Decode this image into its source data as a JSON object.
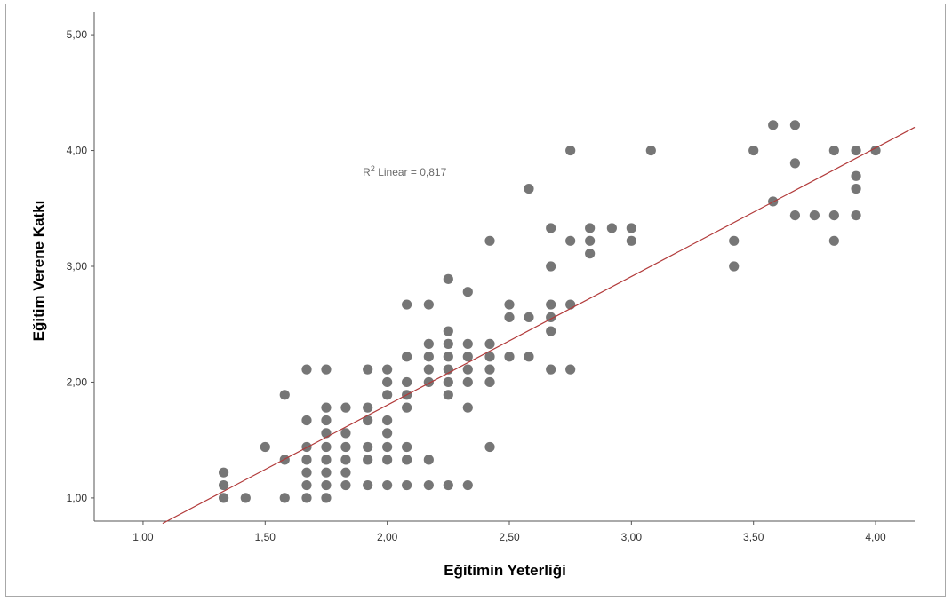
{
  "chart_data": {
    "type": "scatter",
    "title": "",
    "xlabel": "Eğitimin Yeterliği",
    "ylabel": "Eğitim Verene Katkı",
    "xlim": [
      0.8,
      4.16
    ],
    "ylim": [
      0.8,
      5.2
    ],
    "x_ticks": [
      "1,00",
      "1,50",
      "2,00",
      "2,50",
      "3,00",
      "3,50",
      "4,00"
    ],
    "y_ticks": [
      "1,00",
      "2,00",
      "3,00",
      "4,00",
      "5,00"
    ],
    "x_tick_values": [
      1,
      1.5,
      2,
      2.5,
      3,
      3.5,
      4
    ],
    "y_tick_values": [
      1,
      2,
      3,
      4,
      5
    ],
    "grid": false,
    "point_color": "#767676",
    "fit_line_color": "#b23a3a",
    "annotation": {
      "label_prefix": "R",
      "label_sup": "2",
      "label_rest": " Linear = 0,817",
      "x": 1.9,
      "y": 3.78
    },
    "fit_line": {
      "x": [
        1.08,
        4.16
      ],
      "y": [
        0.78,
        4.2
      ]
    },
    "points": [
      [
        1.33,
        1.0
      ],
      [
        1.33,
        1.11
      ],
      [
        1.33,
        1.22
      ],
      [
        1.42,
        1.0
      ],
      [
        1.5,
        1.44
      ],
      [
        1.58,
        1.0
      ],
      [
        1.58,
        1.33
      ],
      [
        1.58,
        1.89
      ],
      [
        1.67,
        1.0
      ],
      [
        1.67,
        1.11
      ],
      [
        1.67,
        1.22
      ],
      [
        1.67,
        1.33
      ],
      [
        1.67,
        1.44
      ],
      [
        1.67,
        1.67
      ],
      [
        1.67,
        2.11
      ],
      [
        1.75,
        1.0
      ],
      [
        1.75,
        1.11
      ],
      [
        1.75,
        1.22
      ],
      [
        1.75,
        1.33
      ],
      [
        1.75,
        1.44
      ],
      [
        1.75,
        1.56
      ],
      [
        1.75,
        1.67
      ],
      [
        1.75,
        1.78
      ],
      [
        1.75,
        2.11
      ],
      [
        1.83,
        1.11
      ],
      [
        1.83,
        1.22
      ],
      [
        1.83,
        1.33
      ],
      [
        1.83,
        1.44
      ],
      [
        1.83,
        1.56
      ],
      [
        1.83,
        1.78
      ],
      [
        1.92,
        1.11
      ],
      [
        1.92,
        1.33
      ],
      [
        1.92,
        1.44
      ],
      [
        1.92,
        1.67
      ],
      [
        1.92,
        1.78
      ],
      [
        1.92,
        2.11
      ],
      [
        2.0,
        1.11
      ],
      [
        2.0,
        1.33
      ],
      [
        2.0,
        1.44
      ],
      [
        2.0,
        1.56
      ],
      [
        2.0,
        1.67
      ],
      [
        2.0,
        1.89
      ],
      [
        2.0,
        2.0
      ],
      [
        2.0,
        2.11
      ],
      [
        2.08,
        1.11
      ],
      [
        2.08,
        1.33
      ],
      [
        2.08,
        1.44
      ],
      [
        2.08,
        1.78
      ],
      [
        2.08,
        1.89
      ],
      [
        2.08,
        2.0
      ],
      [
        2.08,
        2.22
      ],
      [
        2.08,
        2.67
      ],
      [
        2.17,
        1.11
      ],
      [
        2.17,
        1.33
      ],
      [
        2.17,
        2.0
      ],
      [
        2.17,
        2.11
      ],
      [
        2.17,
        2.22
      ],
      [
        2.17,
        2.33
      ],
      [
        2.17,
        2.67
      ],
      [
        2.25,
        1.11
      ],
      [
        2.25,
        1.89
      ],
      [
        2.25,
        2.0
      ],
      [
        2.25,
        2.11
      ],
      [
        2.25,
        2.22
      ],
      [
        2.25,
        2.33
      ],
      [
        2.25,
        2.44
      ],
      [
        2.25,
        2.89
      ],
      [
        2.33,
        1.11
      ],
      [
        2.33,
        1.78
      ],
      [
        2.33,
        2.0
      ],
      [
        2.33,
        2.11
      ],
      [
        2.33,
        2.22
      ],
      [
        2.33,
        2.33
      ],
      [
        2.33,
        2.78
      ],
      [
        2.42,
        1.44
      ],
      [
        2.42,
        2.0
      ],
      [
        2.42,
        2.11
      ],
      [
        2.42,
        2.22
      ],
      [
        2.42,
        2.33
      ],
      [
        2.42,
        3.22
      ],
      [
        2.5,
        2.22
      ],
      [
        2.5,
        2.56
      ],
      [
        2.5,
        2.67
      ],
      [
        2.58,
        2.22
      ],
      [
        2.58,
        2.56
      ],
      [
        2.58,
        3.67
      ],
      [
        2.67,
        2.11
      ],
      [
        2.67,
        2.44
      ],
      [
        2.67,
        2.56
      ],
      [
        2.67,
        2.67
      ],
      [
        2.67,
        3.0
      ],
      [
        2.67,
        3.33
      ],
      [
        2.75,
        2.11
      ],
      [
        2.75,
        2.67
      ],
      [
        2.75,
        3.22
      ],
      [
        2.75,
        4.0
      ],
      [
        2.83,
        3.11
      ],
      [
        2.83,
        3.22
      ],
      [
        2.83,
        3.33
      ],
      [
        2.92,
        3.33
      ],
      [
        3.0,
        3.22
      ],
      [
        3.0,
        3.33
      ],
      [
        3.08,
        4.0
      ],
      [
        3.42,
        3.0
      ],
      [
        3.42,
        3.22
      ],
      [
        3.5,
        4.0
      ],
      [
        3.58,
        3.56
      ],
      [
        3.58,
        4.22
      ],
      [
        3.67,
        3.44
      ],
      [
        3.67,
        3.89
      ],
      [
        3.67,
        4.22
      ],
      [
        3.75,
        3.44
      ],
      [
        3.83,
        3.22
      ],
      [
        3.83,
        3.44
      ],
      [
        3.83,
        4.0
      ],
      [
        3.92,
        3.44
      ],
      [
        3.92,
        3.67
      ],
      [
        3.92,
        3.78
      ],
      [
        3.92,
        4.0
      ],
      [
        4.0,
        4.0
      ]
    ]
  }
}
